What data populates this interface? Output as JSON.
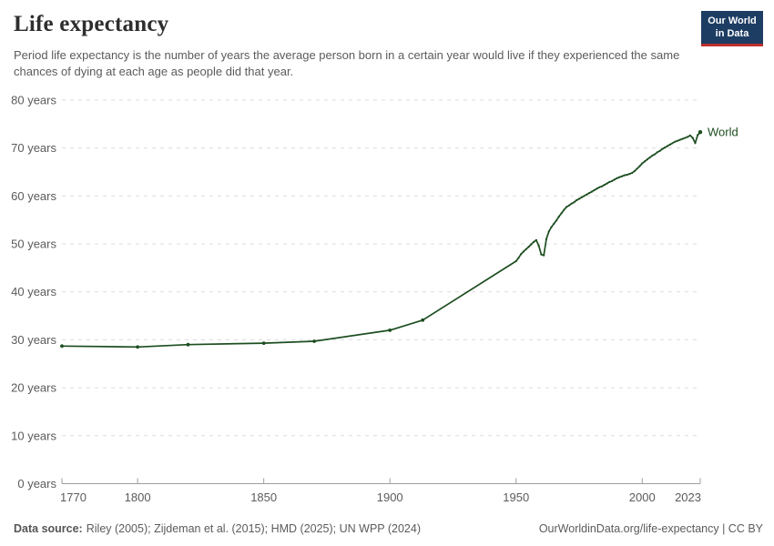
{
  "header": {
    "title": "Life expectancy",
    "subtitle": "Period life expectancy is the number of years the average person born in a certain year would live if they experienced the same chances of dying at each age as people did that year.",
    "logo": {
      "line1": "Our World",
      "line2": "in Data",
      "bg_color": "#1d3d63",
      "accent_color": "#bc2f2c"
    }
  },
  "footer": {
    "source_label": "Data source:",
    "source_text": "Riley (2005); Zijdeman et al. (2015); HMD (2025); UN WPP (2024)",
    "link_text": "OurWorldinData.org/life-expectancy | CC BY"
  },
  "chart_data": {
    "type": "line",
    "title": "Life expectancy",
    "xlabel": "",
    "ylabel": "",
    "xlim": [
      1770,
      2023
    ],
    "ylim": [
      0,
      80
    ],
    "xticks": [
      1770,
      1800,
      1850,
      1900,
      1950,
      2000,
      2023
    ],
    "yticks": [
      0,
      10,
      20,
      30,
      40,
      50,
      60,
      70,
      80
    ],
    "ytick_suffix": " years",
    "grid": "dashed-horizontal",
    "legend": "end-of-line-label",
    "colors": {
      "grid": "#dcdcdc",
      "axis": "#9e9e9e",
      "tick_label": "#5b5b5b"
    },
    "series": [
      {
        "name": "World",
        "color": "#1d4e20",
        "points": [
          [
            1770,
            28.7
          ],
          [
            1800,
            28.5
          ],
          [
            1820,
            29.0
          ],
          [
            1850,
            29.3
          ],
          [
            1870,
            29.7
          ],
          [
            1900,
            32.0
          ],
          [
            1913,
            34.1
          ],
          [
            1950,
            46.4
          ],
          [
            1951,
            47.1
          ],
          [
            1952,
            47.9
          ],
          [
            1953,
            48.4
          ],
          [
            1954,
            48.9
          ],
          [
            1955,
            49.4
          ],
          [
            1956,
            49.9
          ],
          [
            1957,
            50.4
          ],
          [
            1958,
            50.8
          ],
          [
            1959,
            49.6
          ],
          [
            1960,
            47.8
          ],
          [
            1961,
            47.6
          ],
          [
            1962,
            51.0
          ],
          [
            1963,
            52.6
          ],
          [
            1964,
            53.5
          ],
          [
            1965,
            54.2
          ],
          [
            1966,
            54.9
          ],
          [
            1967,
            55.7
          ],
          [
            1968,
            56.4
          ],
          [
            1969,
            57.1
          ],
          [
            1970,
            57.7
          ],
          [
            1971,
            58.0
          ],
          [
            1972,
            58.4
          ],
          [
            1973,
            58.7
          ],
          [
            1974,
            59.1
          ],
          [
            1975,
            59.4
          ],
          [
            1976,
            59.7
          ],
          [
            1977,
            60.0
          ],
          [
            1978,
            60.3
          ],
          [
            1979,
            60.6
          ],
          [
            1980,
            60.9
          ],
          [
            1981,
            61.2
          ],
          [
            1982,
            61.5
          ],
          [
            1983,
            61.8
          ],
          [
            1984,
            62.0
          ],
          [
            1985,
            62.3
          ],
          [
            1986,
            62.6
          ],
          [
            1987,
            62.9
          ],
          [
            1988,
            63.1
          ],
          [
            1989,
            63.4
          ],
          [
            1990,
            63.7
          ],
          [
            1991,
            63.9
          ],
          [
            1992,
            64.1
          ],
          [
            1993,
            64.3
          ],
          [
            1994,
            64.4
          ],
          [
            1995,
            64.6
          ],
          [
            1996,
            64.8
          ],
          [
            1997,
            65.2
          ],
          [
            1998,
            65.7
          ],
          [
            1999,
            66.2
          ],
          [
            2000,
            66.8
          ],
          [
            2001,
            67.2
          ],
          [
            2002,
            67.6
          ],
          [
            2003,
            68.0
          ],
          [
            2004,
            68.4
          ],
          [
            2005,
            68.7
          ],
          [
            2006,
            69.1
          ],
          [
            2007,
            69.4
          ],
          [
            2008,
            69.8
          ],
          [
            2009,
            70.1
          ],
          [
            2010,
            70.4
          ],
          [
            2011,
            70.7
          ],
          [
            2012,
            71.0
          ],
          [
            2013,
            71.3
          ],
          [
            2014,
            71.5
          ],
          [
            2015,
            71.7
          ],
          [
            2016,
            71.9
          ],
          [
            2017,
            72.1
          ],
          [
            2018,
            72.3
          ],
          [
            2019,
            72.6
          ],
          [
            2020,
            72.1
          ],
          [
            2021,
            71.0
          ],
          [
            2022,
            72.7
          ],
          [
            2023,
            73.3
          ]
        ]
      }
    ]
  }
}
